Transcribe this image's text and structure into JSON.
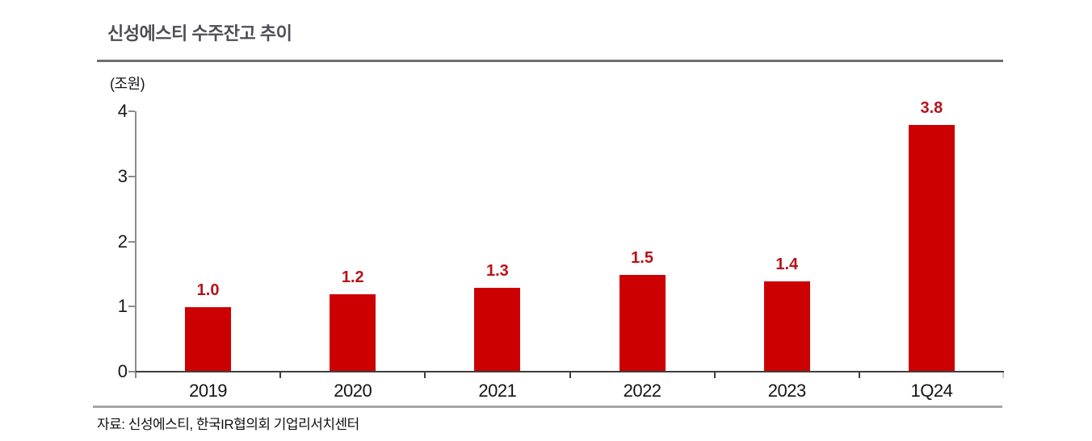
{
  "header": {
    "title": "신성에스티 수주잔고 추이"
  },
  "chart": {
    "unit_label": "(조원)",
    "colors": {
      "bar": "#cc0000",
      "value_label": "#b8121a",
      "title_text": "#4d4d55",
      "axis_y_line": "#8c8c8c",
      "axis_x_line": "#3f3f3f",
      "title_rule": "#6f6f6f",
      "bottom_rule": "#a6a6a6"
    }
  },
  "chart_data": {
    "type": "bar",
    "title": "신성에스티 수주잔고 추이",
    "ylabel": "(조원)",
    "categories": [
      "2019",
      "2020",
      "2021",
      "2022",
      "2023",
      "1Q24"
    ],
    "values": [
      1.0,
      1.2,
      1.3,
      1.5,
      1.4,
      3.8
    ],
    "value_labels": [
      "1.0",
      "1.2",
      "1.3",
      "1.5",
      "1.4",
      "3.8"
    ],
    "ylim": [
      0,
      4
    ],
    "y_ticks": [
      0,
      1,
      2,
      3,
      4
    ],
    "grid": false,
    "legend_position": "none",
    "bar_color": "#cc0000"
  },
  "footer": {
    "source": "자료: 신성에스티, 한국IR협의회 기업리서치센터"
  }
}
